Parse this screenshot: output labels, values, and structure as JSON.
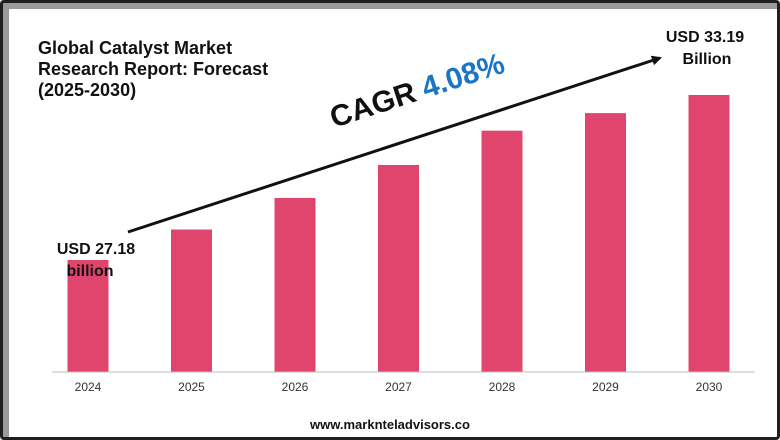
{
  "title": "Global Catalyst Market\nResearch Report: Forecast\n(2025-2030)",
  "footer": "www.marknteladvisors.co",
  "cagr": {
    "label": "CAGR",
    "value": "4.08%"
  },
  "annotations": {
    "start": [
      "USD 27.18",
      "billion"
    ],
    "end": [
      "USD 33.19",
      "Billion"
    ]
  },
  "colors": {
    "bar": "#e0456d",
    "cagr_value": "#1a75c6",
    "text": "#111111",
    "axis": "#bdbdbd"
  },
  "chart_data": {
    "type": "bar",
    "title": "Global Catalyst Market Research Report: Forecast (2025-2030)",
    "categories": [
      "2024",
      "2025",
      "2026",
      "2027",
      "2028",
      "2029",
      "2030"
    ],
    "values": [
      27.18,
      28.29,
      29.44,
      30.64,
      31.89,
      32.53,
      33.19
    ],
    "ylim": [
      23.1,
      34.1
    ],
    "xlabel": "",
    "ylabel": "",
    "grid": false
  }
}
